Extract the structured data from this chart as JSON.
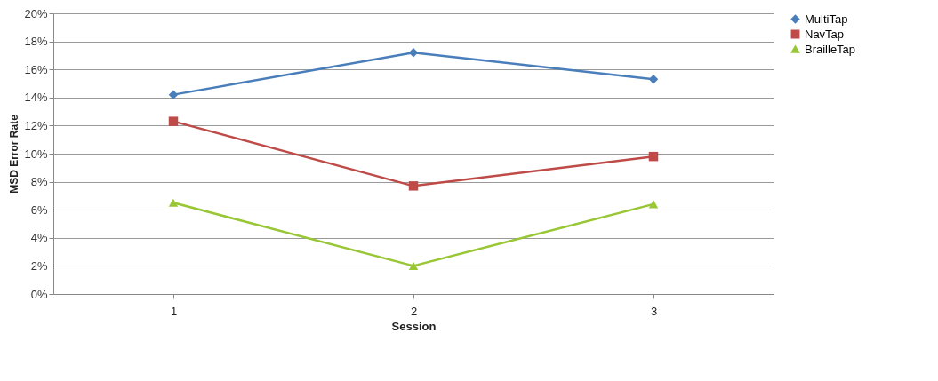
{
  "chart_data": {
    "type": "line",
    "xlabel": "Session",
    "ylabel": "MSD Error Rate",
    "categories": [
      "1",
      "2",
      "3"
    ],
    "series": [
      {
        "name": "MultiTap",
        "color": "#4a7ebb",
        "marker": "diamond",
        "values": [
          14.2,
          17.2,
          15.3
        ]
      },
      {
        "name": "NavTap",
        "color": "#be4b48",
        "marker": "square",
        "values": [
          12.3,
          7.7,
          9.8
        ]
      },
      {
        "name": "BrailleTap",
        "color": "#98c635",
        "marker": "triangle",
        "values": [
          6.5,
          2.0,
          6.4
        ]
      }
    ],
    "ylim": [
      0,
      20
    ],
    "yticks": [
      {
        "value": 0,
        "label": "0%"
      },
      {
        "value": 2,
        "label": "2%"
      },
      {
        "value": 4,
        "label": "4%"
      },
      {
        "value": 6,
        "label": "6%"
      },
      {
        "value": 8,
        "label": "8%"
      },
      {
        "value": 10,
        "label": "10%"
      },
      {
        "value": 12,
        "label": "12%"
      },
      {
        "value": 14,
        "label": "14%"
      },
      {
        "value": 16,
        "label": "16%"
      },
      {
        "value": 18,
        "label": "18%"
      },
      {
        "value": 20,
        "label": "20%"
      }
    ],
    "grid": "y",
    "legend": "right",
    "line_style": "solid"
  }
}
